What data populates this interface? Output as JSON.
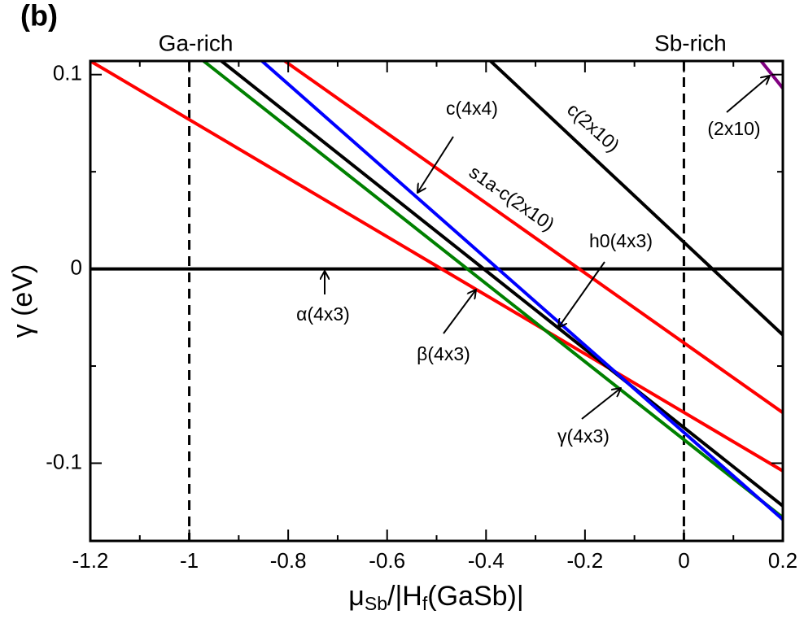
{
  "chart_data": {
    "type": "line",
    "panel_label": "(b)",
    "x_label_parts": [
      "μ",
      "Sb",
      "/|H",
      "f",
      "(GaSb)|"
    ],
    "y_label": "γ (eV)",
    "xlim": [
      -1.2,
      0.2
    ],
    "ylim": [
      -0.14,
      0.107
    ],
    "xticks": [
      -1.2,
      -1,
      -0.8,
      -0.6,
      -0.4,
      -0.2,
      0,
      0.2
    ],
    "yticks": [
      -0.1,
      0,
      0.1
    ],
    "xticks_minor": [
      -1.1,
      -0.9,
      -0.7,
      -0.5,
      -0.3,
      -0.1,
      0.1
    ],
    "yticks_minor": [
      -0.05,
      0.05
    ],
    "reference_lines": [
      {
        "x": -1,
        "label": "Ga-rich"
      },
      {
        "x": 0,
        "label": "Sb-rich"
      }
    ],
    "series": [
      {
        "name": "α(4x3)",
        "color": "#000000",
        "x": [
          -1.2,
          0.2
        ],
        "values": [
          0,
          0
        ]
      },
      {
        "name": "β(4x3)",
        "color": "#ff0000",
        "x": [
          -1.2,
          0.2
        ],
        "values": [
          0.107,
          -0.104
        ]
      },
      {
        "name": "γ(4x3)",
        "color": "#008000",
        "x": [
          -0.971,
          0.2
        ],
        "values": [
          0.107,
          -0.128
        ]
      },
      {
        "name": "h0(4x3)",
        "color": "#000000",
        "x": [
          -0.935,
          0.2
        ],
        "values": [
          0.107,
          -0.122
        ]
      },
      {
        "name": "c(4x4)",
        "color": "#0000ff",
        "x": [
          -0.853,
          0.2
        ],
        "values": [
          0.107,
          -0.129
        ]
      },
      {
        "name": "s1a-c(2x10)",
        "color": "#ff0000",
        "x": [
          -0.807,
          0.2
        ],
        "values": [
          0.107,
          -0.074
        ]
      },
      {
        "name": "c(2x10)",
        "color": "#000000",
        "x": [
          -0.391,
          0.2
        ],
        "values": [
          0.107,
          -0.034
        ]
      },
      {
        "name": "(2x10)",
        "color": "#800080",
        "x": [
          0.156,
          0.2
        ],
        "values": [
          0.107,
          0.093
        ]
      }
    ]
  }
}
